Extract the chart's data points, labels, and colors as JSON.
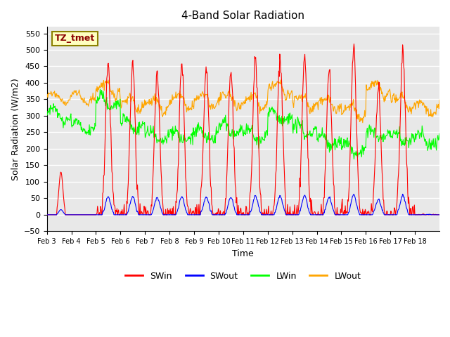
{
  "title": "4-Band Solar Radiation",
  "xlabel": "Time",
  "ylabel": "Solar Radiation (W/m2)",
  "ylim": [
    -50,
    570
  ],
  "yticks": [
    -50,
    0,
    50,
    100,
    150,
    200,
    250,
    300,
    350,
    400,
    450,
    500,
    550
  ],
  "xtick_labels": [
    "Feb 3",
    "Feb 4",
    "Feb 5",
    "Feb 6",
    "Feb 7",
    "Feb 8",
    "Feb 9",
    "Feb 10",
    "Feb 11",
    "Feb 12",
    "Feb 13",
    "Feb 14",
    "Feb 15",
    "Feb 16",
    "Feb 17",
    "Feb 18"
  ],
  "annotation_text": "TZ_tmet",
  "annotation_color": "#8B0000",
  "annotation_bg": "#FFFFC0",
  "annotation_border": "#8B8000",
  "colors": {
    "SWin": "#FF0000",
    "SWout": "#0000FF",
    "LWin": "#00FF00",
    "LWout": "#FFA500"
  },
  "background_color": "#E8E8E8",
  "grid_color": "#FFFFFF",
  "n_days": 16,
  "points_per_day": 48,
  "sw_peaks": [
    130,
    0,
    460,
    460,
    435,
    460,
    455,
    440,
    480,
    480,
    480,
    440,
    510,
    385,
    495,
    0
  ],
  "lwin_base": [
    310,
    270,
    350,
    280,
    240,
    245,
    250,
    265,
    245,
    305,
    265,
    230,
    205,
    250,
    240,
    235
  ],
  "lwout_base": [
    360,
    355,
    370,
    325,
    320,
    330,
    335,
    335,
    330,
    370,
    330,
    325,
    300,
    370,
    330,
    325
  ]
}
